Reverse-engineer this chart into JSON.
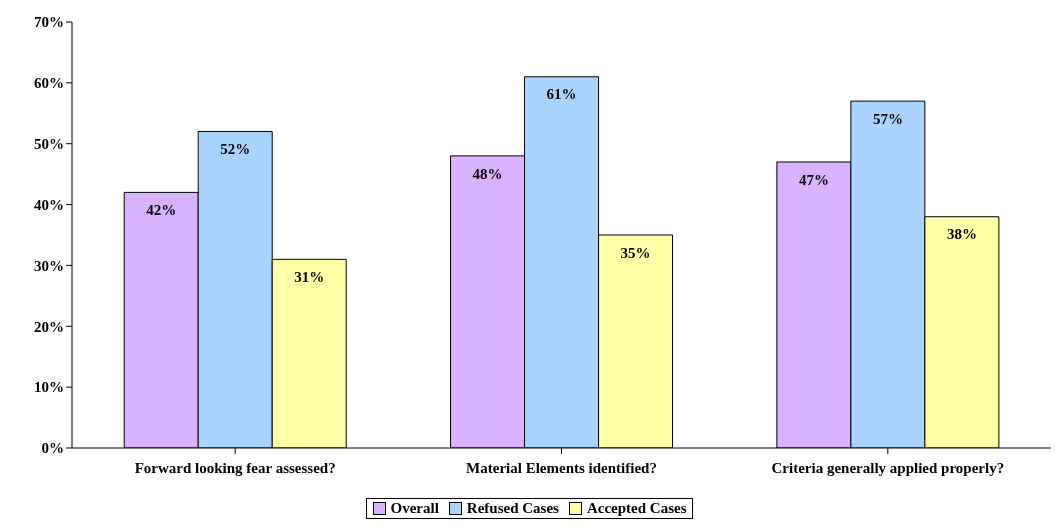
{
  "chart_data": {
    "type": "bar",
    "categories": [
      "Forward looking fear assessed?",
      "Material Elements identified?",
      "Criteria generally applied properly?"
    ],
    "series": [
      {
        "name": "Overall",
        "color": "#d9b3ff",
        "values": [
          42,
          48,
          47
        ],
        "value_labels": [
          "42%",
          "48%",
          "47%"
        ]
      },
      {
        "name": "Refused Cases",
        "color": "#aad4ff",
        "values": [
          52,
          61,
          57
        ],
        "value_labels": [
          "52%",
          "61%",
          "57%"
        ]
      },
      {
        "name": "Accepted Cases",
        "color": "#ffffa8",
        "values": [
          31,
          35,
          38
        ],
        "value_labels": [
          "31%",
          "35%",
          "38%"
        ]
      }
    ],
    "ylim": [
      0,
      70
    ],
    "yticks": [
      {
        "value": 0,
        "label": "0%"
      },
      {
        "value": 10,
        "label": "10%"
      },
      {
        "value": 20,
        "label": "20%"
      },
      {
        "value": 30,
        "label": "30%"
      },
      {
        "value": 40,
        "label": "40%"
      },
      {
        "value": 50,
        "label": "50%"
      },
      {
        "value": 60,
        "label": "60%"
      },
      {
        "value": 70,
        "label": "70%"
      }
    ],
    "grid": false,
    "legend": "bottom"
  }
}
